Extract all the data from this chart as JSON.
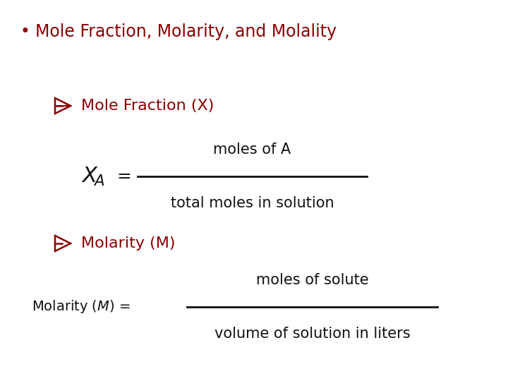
{
  "bg_color": "#ffffff",
  "dark_red": "#8B0000",
  "black": "#111111",
  "bullet_text": "Mole Fraction, Molarity, and Molality",
  "heading1": "Mole Fraction (X)",
  "heading2": "Molarity (M)",
  "frac1_num": "moles of A",
  "frac1_den": "total moles in solution",
  "frac2_num": "moles of solute",
  "frac2_den": "volume of solution in liters",
  "title_fontsize": 17,
  "heading_fontsize": 16,
  "formula_fontsize": 14,
  "label_fontsize": 14
}
